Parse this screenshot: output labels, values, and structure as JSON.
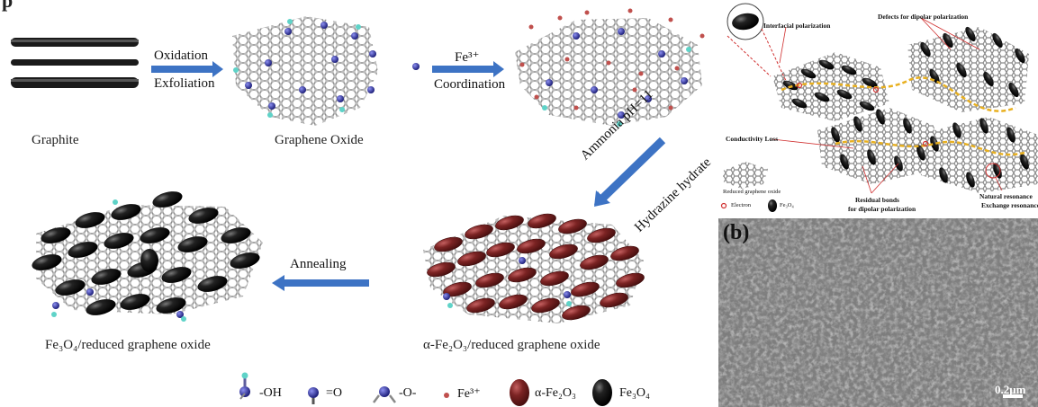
{
  "partial_top_label": "p",
  "steps": {
    "graphite": "Graphite",
    "graphene_oxide": "Graphene Oxide",
    "rgo_fe3o4": "Fe₃O₄/reduced graphene oxide",
    "rgo_fe2o3": "α-Fe₂O₃/reduced graphene oxide"
  },
  "arrows": {
    "oxidation": "Oxidation",
    "exfoliation": "Exfoliation",
    "fe3": "Fe³⁺",
    "coordination": "Coordination",
    "ammonia": "Ammonia pH=11",
    "hydrazine": "Hydrazine hydrate",
    "annealing": "Annealing"
  },
  "legend": {
    "oh": "-OH",
    "o_double": "=O",
    "o_single": "-O-",
    "fe3": "Fe³⁺",
    "fe2o3": "α-Fe₂O₃",
    "fe3o4": "Fe₃O₄"
  },
  "panel_a": {
    "interfacial": "Interfacial polarization",
    "defects": "Defects for dipolar polarization",
    "conductivity": "Conductivity Loss",
    "rgo": "Reduced graphene oxide",
    "residual1": "Residual bonds",
    "residual2": "for dipolar polarization",
    "natural": "Natural resonance",
    "exchange": "Exchange resonance",
    "electron": "Electron",
    "fe3o4": "Fe₃O₄"
  },
  "panel_b": {
    "label": "(b)",
    "scale": "0.2μm"
  },
  "colors": {
    "carbon": "#a8a8a8",
    "oxygen": "#2b2d8f",
    "hydrogen": "#5fd3c8",
    "fe_ion": "#c0504d",
    "fe2o3": "#7a2222",
    "fe3o4": "#111111",
    "arrow": "#3d73c4"
  }
}
